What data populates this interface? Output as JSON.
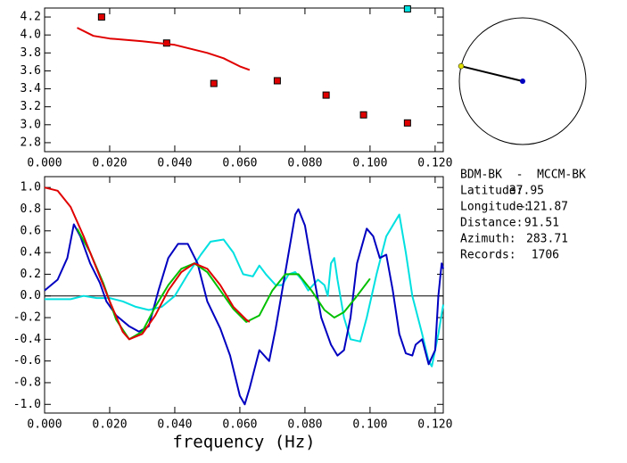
{
  "chart_data": [
    {
      "type": "scatter",
      "xlim": [
        0,
        0.1225
      ],
      "ylim": [
        2.7,
        4.3
      ],
      "xticks": [
        {
          "value": 0,
          "label": "0.000"
        },
        {
          "value": 0.02,
          "label": "0.020"
        },
        {
          "value": 0.04,
          "label": "0.040"
        },
        {
          "value": 0.06,
          "label": "0.060"
        },
        {
          "value": 0.08,
          "label": "0.080"
        },
        {
          "value": 0.1,
          "label": "0.100"
        },
        {
          "value": 0.12,
          "label": "0.120"
        }
      ],
      "yticks": [
        2.8,
        {
          "value": 3,
          "label": "3.0"
        },
        3.2,
        3.4,
        3.6,
        3.8,
        {
          "value": 4,
          "label": "4.0"
        },
        4.2
      ],
      "series": [
        {
          "type": "scatter",
          "color": "#e00000",
          "x": [
            0.0175,
            0.0375,
            0.052,
            0.0715,
            0.0865,
            0.098,
            0.1115
          ],
          "values": [
            4.2,
            3.91,
            3.46,
            3.49,
            3.33,
            3.11,
            3.02
          ]
        },
        {
          "type": "scatter",
          "color": "#00e0e0",
          "x": [
            0.1115
          ],
          "values": [
            4.29
          ]
        },
        {
          "type": "line",
          "color": "#e00000",
          "x": [
            0.01,
            0.015,
            0.02,
            0.03,
            0.04,
            0.05,
            0.055,
            0.06,
            0.063
          ],
          "values": [
            4.08,
            3.99,
            3.96,
            3.93,
            3.89,
            3.8,
            3.74,
            3.65,
            3.61
          ]
        }
      ]
    },
    {
      "type": "line",
      "xlabel": "frequency (Hz)",
      "xlim": [
        0,
        0.1225
      ],
      "ylim": [
        -1.08,
        1.1
      ],
      "hline": 0,
      "xticks": [
        {
          "value": 0,
          "label": "0.000"
        },
        {
          "value": 0.02,
          "label": "0.020"
        },
        {
          "value": 0.04,
          "label": "0.040"
        },
        {
          "value": 0.06,
          "label": "0.060"
        },
        {
          "value": 0.08,
          "label": "0.080"
        },
        {
          "value": 0.1,
          "label": "0.100"
        },
        {
          "value": 0.12,
          "label": "0.120"
        }
      ],
      "yticks": [
        {
          "value": -1,
          "label": "-1.0"
        },
        -0.8,
        -0.6,
        -0.4,
        -0.2,
        {
          "value": 0,
          "label": "0.0"
        },
        0.2,
        0.4,
        0.6,
        0.8,
        {
          "value": 1,
          "label": "1.0"
        }
      ],
      "series": [
        {
          "color": "#00e0e0",
          "x": [
            0,
            0.008,
            0.012,
            0.016,
            0.02,
            0.024,
            0.028,
            0.032,
            0.036,
            0.04,
            0.044,
            0.048,
            0.051,
            0.055,
            0.058,
            0.061,
            0.064,
            0.066,
            0.068,
            0.071,
            0.073,
            0.075,
            0.077,
            0.079,
            0.081,
            0.084,
            0.086,
            0.087,
            0.088,
            0.089,
            0.09,
            0.092,
            0.094,
            0.097,
            0.099,
            0.102,
            0.105,
            0.107,
            0.109,
            0.111,
            0.113,
            0.116,
            0.118,
            0.119,
            0.121,
            0.1225
          ],
          "values": [
            -0.03,
            -0.03,
            0.0,
            -0.02,
            -0.02,
            -0.05,
            -0.1,
            -0.13,
            -0.1,
            0.0,
            0.2,
            0.38,
            0.5,
            0.52,
            0.4,
            0.2,
            0.18,
            0.28,
            0.2,
            0.1,
            0.1,
            0.2,
            0.22,
            0.15,
            0.05,
            0.15,
            0.1,
            0.0,
            0.3,
            0.35,
            0.15,
            -0.2,
            -0.4,
            -0.42,
            -0.2,
            0.2,
            0.55,
            0.65,
            0.75,
            0.4,
            0.0,
            -0.35,
            -0.6,
            -0.65,
            -0.35,
            -0.08
          ]
        },
        {
          "color": "#0000c0",
          "x": [
            0,
            0.004,
            0.007,
            0.009,
            0.011,
            0.014,
            0.017,
            0.019,
            0.022,
            0.026,
            0.029,
            0.032,
            0.035,
            0.038,
            0.041,
            0.044,
            0.047,
            0.05,
            0.054,
            0.057,
            0.06,
            0.0615,
            0.063,
            0.066,
            0.069,
            0.071,
            0.073,
            0.075,
            0.077,
            0.078,
            0.08,
            0.082,
            0.085,
            0.088,
            0.09,
            0.092,
            0.094,
            0.096,
            0.099,
            0.101,
            0.103,
            0.105,
            0.107,
            0.109,
            0.111,
            0.113,
            0.114,
            0.116,
            0.118,
            0.12,
            0.121,
            0.122,
            0.1225
          ],
          "values": [
            0.05,
            0.15,
            0.35,
            0.66,
            0.55,
            0.3,
            0.12,
            -0.05,
            -0.18,
            -0.28,
            -0.33,
            -0.28,
            0.05,
            0.35,
            0.48,
            0.48,
            0.3,
            -0.05,
            -0.3,
            -0.55,
            -0.92,
            -1.0,
            -0.85,
            -0.5,
            -0.6,
            -0.3,
            0.05,
            0.4,
            0.75,
            0.8,
            0.65,
            0.3,
            -0.2,
            -0.45,
            -0.55,
            -0.5,
            -0.2,
            0.3,
            0.62,
            0.55,
            0.35,
            0.38,
            0.05,
            -0.35,
            -0.53,
            -0.55,
            -0.45,
            -0.4,
            -0.63,
            -0.5,
            0.0,
            0.3,
            0.25
          ]
        },
        {
          "color": "#00c000",
          "x": [
            0.01,
            0.014,
            0.018,
            0.022,
            0.026,
            0.03,
            0.034,
            0.038,
            0.042,
            0.046,
            0.05,
            0.054,
            0.058,
            0.062,
            0.066,
            0.07,
            0.074,
            0.078,
            0.082,
            0.086,
            0.089,
            0.092,
            0.096,
            0.1
          ],
          "values": [
            0.62,
            0.4,
            0.12,
            -0.22,
            -0.4,
            -0.33,
            -0.1,
            0.1,
            0.25,
            0.3,
            0.22,
            0.05,
            -0.12,
            -0.24,
            -0.18,
            0.05,
            0.2,
            0.2,
            0.05,
            -0.13,
            -0.2,
            -0.15,
            0.0,
            0.16
          ]
        },
        {
          "color": "#e00000",
          "x": [
            0,
            0.004,
            0.008,
            0.012,
            0.016,
            0.02,
            0.024,
            0.026,
            0.03,
            0.034,
            0.038,
            0.042,
            0.046,
            0.05,
            0.054,
            0.058,
            0.062,
            0.063
          ],
          "values": [
            1.0,
            0.97,
            0.82,
            0.55,
            0.25,
            -0.05,
            -0.33,
            -0.4,
            -0.35,
            -0.18,
            0.05,
            0.22,
            0.3,
            0.25,
            0.1,
            -0.1,
            -0.22,
            -0.24
          ]
        }
      ]
    }
  ],
  "station_info": {
    "title": "BDM-BK  -  MCCM-BK",
    "rows": [
      {
        "label": "Latitude:",
        "value": 37.95
      },
      {
        "label": "Longitude:",
        "value": -121.87
      },
      {
        "label": "Distance:",
        "value": 91.51
      },
      {
        "label": "Azimuth:",
        "value": 283.71
      },
      {
        "label": "Records:",
        "value": 1706
      }
    ]
  }
}
